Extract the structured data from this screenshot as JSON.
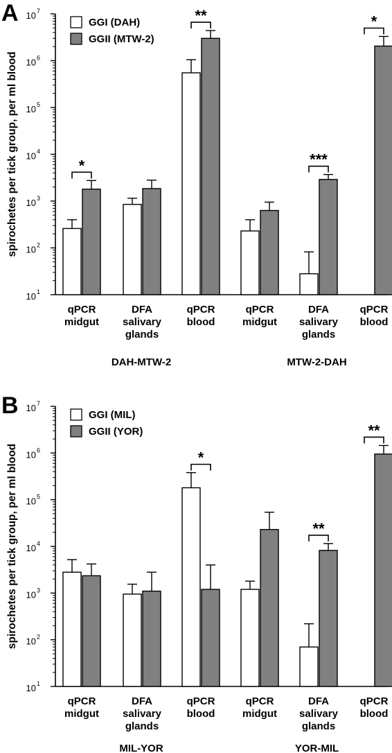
{
  "chart_data": [
    {
      "type": "bar",
      "panel": "A",
      "ylabel": "spirochetes per tick group, per ml blood",
      "yscale": "log",
      "ylim": [
        10,
        10000000
      ],
      "yticks": [
        {
          "base": "10",
          "exp": "1"
        },
        {
          "base": "10",
          "exp": "2"
        },
        {
          "base": "10",
          "exp": "3"
        },
        {
          "base": "10",
          "exp": "4"
        },
        {
          "base": "10",
          "exp": "5"
        },
        {
          "base": "10",
          "exp": "6"
        },
        {
          "base": "10",
          "exp": "7"
        }
      ],
      "legend_position": "top-left",
      "categories": [
        {
          "lines": [
            "qPCR",
            "midgut"
          ]
        },
        {
          "lines": [
            "DFA",
            "salivary",
            "glands"
          ]
        },
        {
          "lines": [
            "qPCR",
            "blood"
          ]
        },
        {
          "lines": [
            "qPCR",
            "midgut"
          ]
        },
        {
          "lines": [
            "DFA",
            "salivary",
            "glands"
          ]
        },
        {
          "lines": [
            "qPCR",
            "blood"
          ]
        }
      ],
      "groups": [
        {
          "label": "DAH-MTW-2",
          "categories": [
            0,
            1,
            2
          ]
        },
        {
          "label": "MTW-2-DAH",
          "categories": [
            3,
            4,
            5
          ]
        }
      ],
      "series": [
        {
          "name": "GGI (DAH)",
          "color": "#ffffff",
          "values": [
            260,
            850,
            550000,
            230,
            28,
            null
          ],
          "error_upper": [
            400,
            1150,
            1050000,
            400,
            82,
            null
          ]
        },
        {
          "name": "GGII (MTW-2)",
          "color": "#808080",
          "values": [
            1800,
            1850,
            3000000,
            630,
            2900,
            2050000
          ],
          "error_upper": [
            2750,
            2800,
            4400000,
            950,
            3700,
            3300000
          ]
        }
      ],
      "significance": [
        {
          "category": 0,
          "label": "*"
        },
        {
          "category": 2,
          "label": "**"
        },
        {
          "category": 4,
          "label": "***"
        },
        {
          "category": 5,
          "label": "*"
        }
      ]
    },
    {
      "type": "bar",
      "panel": "B",
      "ylabel": "spirochetes per tick group, per ml blood",
      "yscale": "log",
      "ylim": [
        10,
        10000000
      ],
      "yticks": [
        {
          "base": "10",
          "exp": "1"
        },
        {
          "base": "10",
          "exp": "2"
        },
        {
          "base": "10",
          "exp": "3"
        },
        {
          "base": "10",
          "exp": "4"
        },
        {
          "base": "10",
          "exp": "5"
        },
        {
          "base": "10",
          "exp": "6"
        },
        {
          "base": "10",
          "exp": "7"
        }
      ],
      "legend_position": "top-left",
      "categories": [
        {
          "lines": [
            "qPCR",
            "midgut"
          ]
        },
        {
          "lines": [
            "DFA",
            "salivary",
            "glands"
          ]
        },
        {
          "lines": [
            "qPCR",
            "blood"
          ]
        },
        {
          "lines": [
            "qPCR",
            "midgut"
          ]
        },
        {
          "lines": [
            "DFA",
            "salivary",
            "glands"
          ]
        },
        {
          "lines": [
            "qPCR",
            "blood"
          ]
        }
      ],
      "groups": [
        {
          "label": "MIL-YOR",
          "categories": [
            0,
            1,
            2
          ]
        },
        {
          "label": "YOR-MIL",
          "categories": [
            3,
            4,
            5
          ]
        }
      ],
      "series": [
        {
          "name": "GGI (MIL)",
          "color": "#ffffff",
          "values": [
            2800,
            950,
            180000,
            1200,
            70,
            null
          ],
          "error_upper": [
            5200,
            1550,
            380000,
            1800,
            220,
            null
          ]
        },
        {
          "name": "GGII (YOR)",
          "color": "#808080",
          "values": [
            2350,
            1100,
            1200,
            23000,
            8200,
            950000
          ],
          "error_upper": [
            4200,
            2800,
            4000,
            54000,
            11500,
            1450000
          ]
        }
      ],
      "significance": [
        {
          "category": 2,
          "label": "*"
        },
        {
          "category": 4,
          "label": "**"
        },
        {
          "category": 5,
          "label": "**"
        }
      ]
    }
  ]
}
